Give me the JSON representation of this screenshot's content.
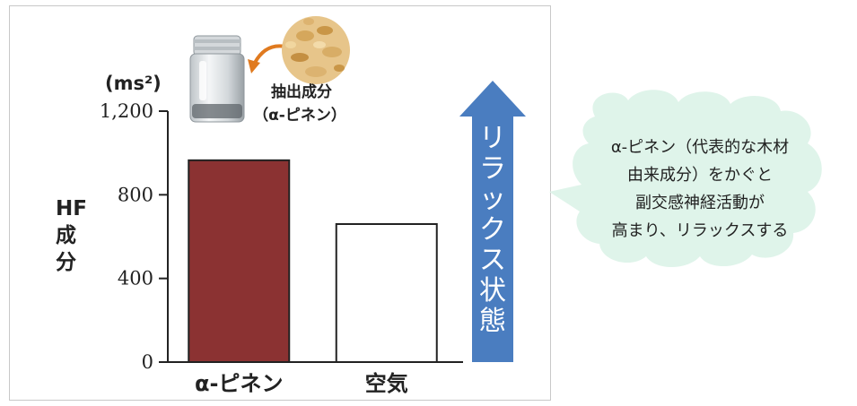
{
  "chart_data": {
    "type": "bar",
    "categories": [
      "α-ピネン",
      "空気"
    ],
    "values": [
      965,
      660
    ],
    "ylabel": "HF成分",
    "yunit": "(ms²)",
    "ylim": [
      0,
      1200
    ],
    "yticks": [
      "0",
      "400",
      "800",
      "1,200"
    ],
    "ytick_values": [
      0,
      400,
      800,
      1200
    ],
    "grid": false,
    "legend": "none"
  },
  "colors": {
    "bar_alpha_pinene": "#8b3232",
    "bar_air": "#ffffff",
    "arrow": "#4a7dc0",
    "bubble": "#dff4ea"
  },
  "annotation": {
    "line1": "抽出成分",
    "line2": "（α‐ピネン）",
    "icons": [
      "sample-bottle-icon",
      "wood-chips-icon"
    ]
  },
  "arrow_label": "リラックス状態",
  "bubble": {
    "lines": [
      "α-ピネン（代表的な木材",
      "由来成分）をかぐと",
      "副交感神経活動が",
      "高まり、リラックスする"
    ]
  }
}
